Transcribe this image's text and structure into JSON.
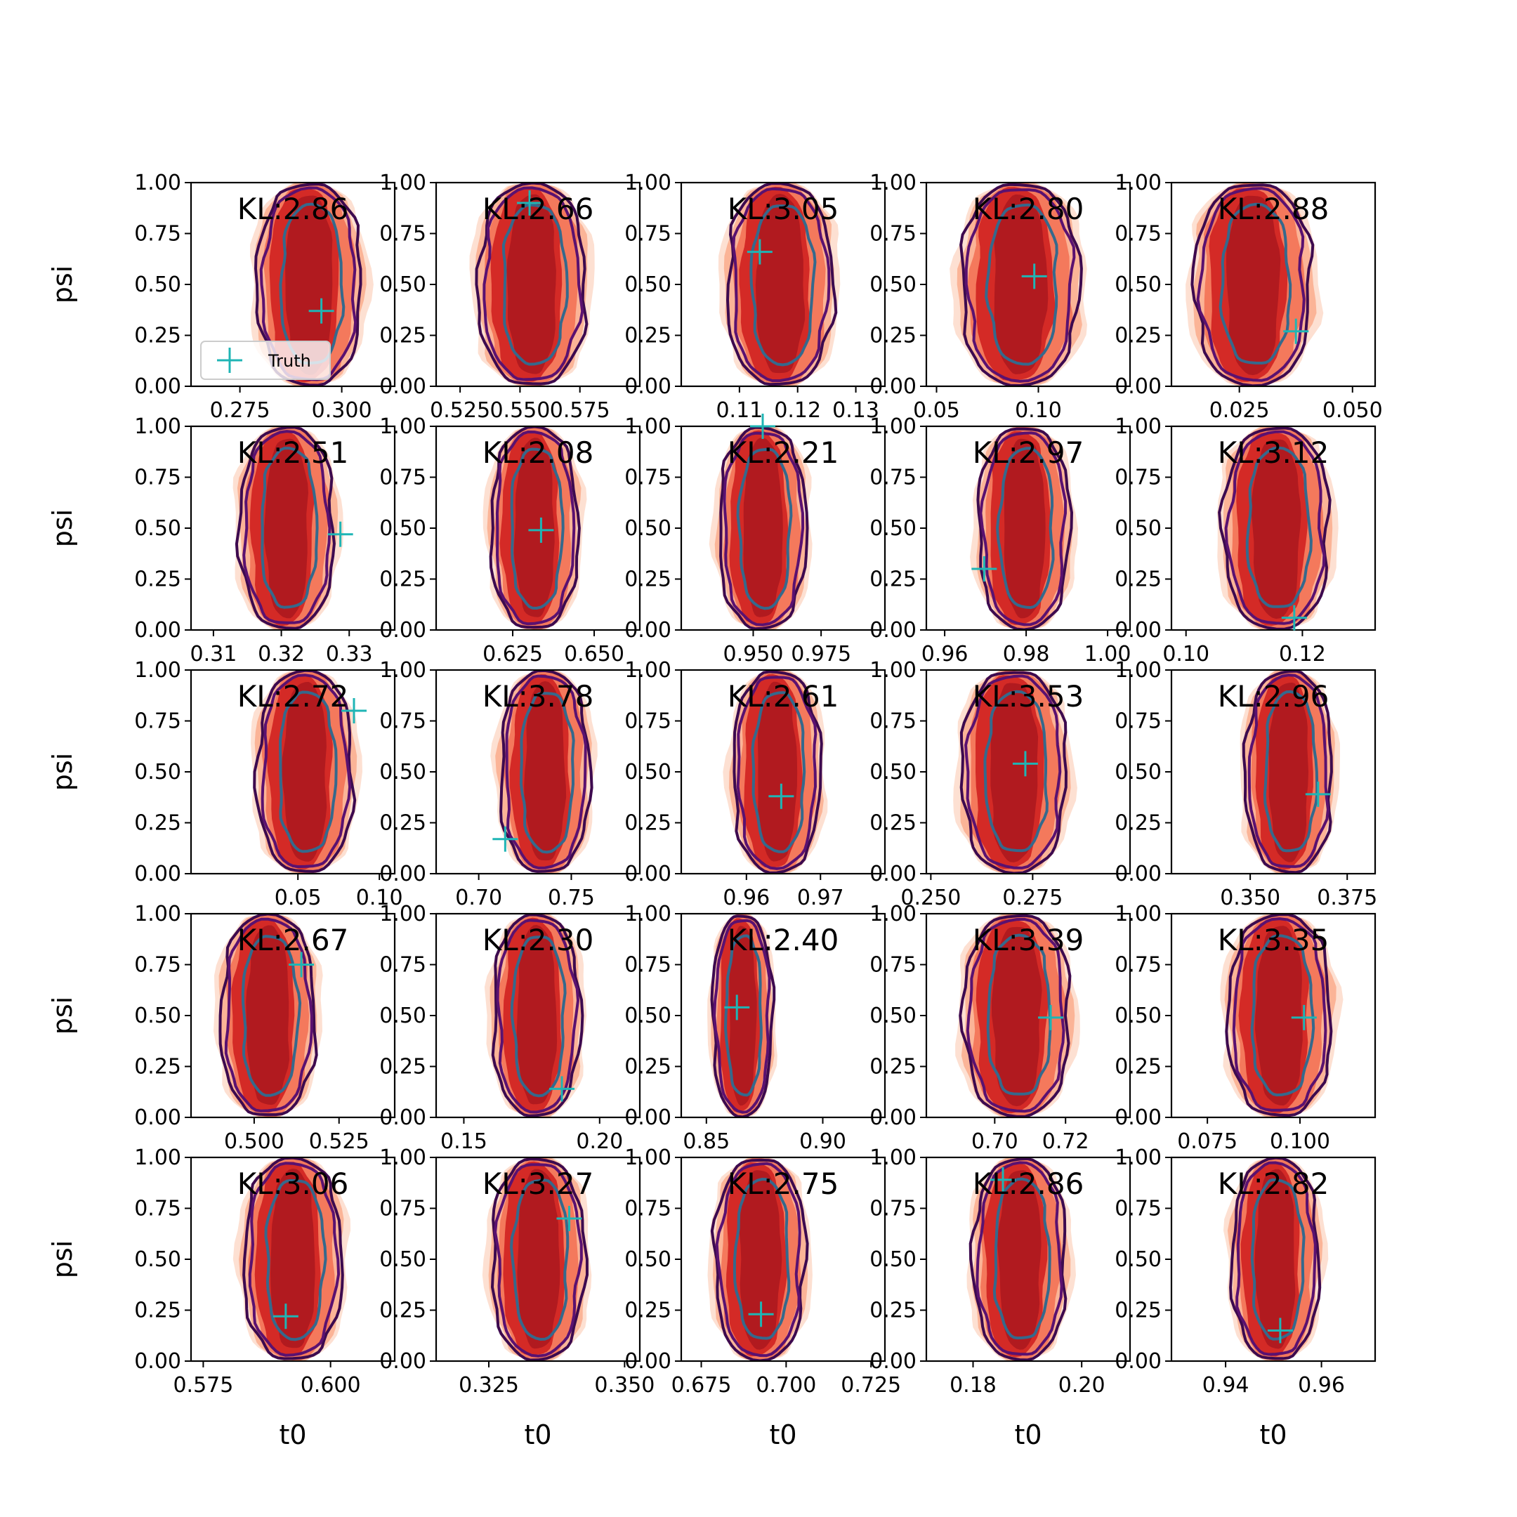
{
  "colors": {
    "fill_outer": "#fde0d2",
    "fill_mid": "#fbb497",
    "fill_light": "#fcbfa5",
    "fill_orange": "#f4795c",
    "fill_core": "#d42a26",
    "fill_deep": "#b11a1f",
    "contour_dark": "#3d0a4f",
    "contour_mid": "#5a1170",
    "contour_inner": "#35698c",
    "truth_marker": "#1fb5b5"
  },
  "legend": {
    "label": "Truth",
    "marker": "plus",
    "location": "lower left of first panel"
  },
  "chart_data": [
    {
      "type": "contour",
      "panel": 1,
      "annotation": "KL:2.86",
      "xlabel": "",
      "ylabel": "psi",
      "xlim": [
        0.263,
        0.313
      ],
      "ylim": [
        0,
        1
      ],
      "xticks": [
        "0.275",
        "0.300"
      ],
      "xtick_values": [
        0.275,
        0.3
      ],
      "yticks": [
        "0.00",
        "0.25",
        "0.50",
        "0.75",
        "1.00"
      ],
      "center_x": 0.292,
      "width": 0.024,
      "truth": {
        "x": 0.295,
        "y": 0.37
      }
    },
    {
      "type": "contour",
      "panel": 2,
      "annotation": "KL:2.66",
      "xlabel": "",
      "ylabel": "",
      "xlim": [
        0.515,
        0.6
      ],
      "ylim": [
        0,
        1
      ],
      "xticks": [
        "0.525",
        "0.550",
        "0.575"
      ],
      "xtick_values": [
        0.525,
        0.55,
        0.575
      ],
      "yticks": [
        "0.00",
        "0.25",
        "0.50",
        "0.75",
        "1.00"
      ],
      "center_x": 0.555,
      "width": 0.042,
      "truth": {
        "x": 0.554,
        "y": 0.9
      }
    },
    {
      "type": "contour",
      "panel": 3,
      "annotation": "KL:3.05",
      "xlabel": "",
      "ylabel": "",
      "xlim": [
        0.1,
        0.135
      ],
      "ylim": [
        0,
        1
      ],
      "xticks": [
        "0.11",
        "0.12",
        "0.13"
      ],
      "xtick_values": [
        0.11,
        0.12,
        0.13
      ],
      "yticks": [
        "0.00",
        "0.25",
        "0.50",
        "0.75",
        "1.00"
      ],
      "center_x": 0.117,
      "width": 0.017,
      "truth": {
        "x": 0.1135,
        "y": 0.66
      }
    },
    {
      "type": "contour",
      "panel": 4,
      "annotation": "KL:2.80",
      "xlabel": "",
      "ylabel": "",
      "xlim": [
        0.045,
        0.145
      ],
      "ylim": [
        0,
        1
      ],
      "xticks": [
        "0.05",
        "0.10"
      ],
      "xtick_values": [
        0.05,
        0.1
      ],
      "yticks": [
        "0.00",
        "0.25",
        "0.50",
        "0.75",
        "1.00"
      ],
      "center_x": 0.091,
      "width": 0.054,
      "truth": {
        "x": 0.098,
        "y": 0.54
      }
    },
    {
      "type": "contour",
      "panel": 5,
      "annotation": "KL:2.88",
      "xlabel": "",
      "ylabel": "",
      "xlim": [
        0.01,
        0.055
      ],
      "ylim": [
        0,
        1
      ],
      "xticks": [
        "0.025",
        "0.050"
      ],
      "xtick_values": [
        0.025,
        0.05
      ],
      "yticks": [
        "0.00",
        "0.25",
        "0.50",
        "0.75",
        "1.00"
      ],
      "center_x": 0.028,
      "width": 0.024,
      "truth": {
        "x": 0.0375,
        "y": 0.27
      }
    },
    {
      "type": "contour",
      "panel": 6,
      "annotation": "KL:2.51",
      "xlabel": "",
      "ylabel": "psi",
      "xlim": [
        0.3067,
        0.3367
      ],
      "ylim": [
        0,
        1
      ],
      "xticks": [
        "0.31",
        "0.32",
        "0.33"
      ],
      "xtick_values": [
        0.31,
        0.32,
        0.33
      ],
      "yticks": [
        "0.00",
        "0.25",
        "0.50",
        "0.75",
        "1.00"
      ],
      "center_x": 0.3208,
      "width": 0.013,
      "truth": {
        "x": 0.3287,
        "y": 0.47
      }
    },
    {
      "type": "contour",
      "panel": 7,
      "annotation": "KL:2.08",
      "xlabel": "",
      "ylabel": "",
      "xlim": [
        0.6015,
        0.664
      ],
      "ylim": [
        0,
        1
      ],
      "xticks": [
        "0.625",
        "0.650"
      ],
      "xtick_values": [
        0.625,
        0.65
      ],
      "yticks": [
        "0.00",
        "0.25",
        "0.50",
        "0.75",
        "1.00"
      ],
      "center_x": 0.6317,
      "width": 0.025,
      "truth": {
        "x": 0.6337,
        "y": 0.49
      }
    },
    {
      "type": "contour",
      "panel": 8,
      "annotation": "KL:2.21",
      "xlabel": "",
      "ylabel": "",
      "xlim": [
        0.9235,
        0.9985
      ],
      "ylim": [
        0,
        1
      ],
      "xticks": [
        "0.950",
        "0.975"
      ],
      "xtick_values": [
        0.95,
        0.975
      ],
      "yticks": [
        "0.00",
        "0.25",
        "0.50",
        "0.75",
        "1.00"
      ],
      "center_x": 0.9535,
      "width": 0.03,
      "truth": {
        "x": 0.9535,
        "y": 1.0
      }
    },
    {
      "type": "contour",
      "panel": 9,
      "annotation": "KL:2.97",
      "xlabel": "",
      "ylabel": "",
      "xlim": [
        0.9555,
        1.0055
      ],
      "ylim": [
        0,
        1
      ],
      "xticks": [
        "0.96",
        "0.98",
        "1.00"
      ],
      "xtick_values": [
        0.96,
        0.98,
        1.0
      ],
      "yticks": [
        "0.00",
        "0.25",
        "0.50",
        "0.75",
        "1.00"
      ],
      "center_x": 0.9795,
      "width": 0.021,
      "truth": {
        "x": 0.9697,
        "y": 0.3
      }
    },
    {
      "type": "contour",
      "panel": 10,
      "annotation": "KL:3.12",
      "xlabel": "",
      "ylabel": "",
      "xlim": [
        0.0975,
        0.1325
      ],
      "ylim": [
        0,
        1
      ],
      "xticks": [
        "0.10",
        "0.12"
      ],
      "xtick_values": [
        0.1,
        0.12
      ],
      "yticks": [
        "0.00",
        "0.25",
        "0.50",
        "0.75",
        "1.00"
      ],
      "center_x": 0.1155,
      "width": 0.017,
      "truth": {
        "x": 0.1186,
        "y": 0.06
      }
    },
    {
      "type": "contour",
      "panel": 11,
      "annotation": "KL:2.72",
      "xlabel": "",
      "ylabel": "psi",
      "xlim": [
        -0.0156,
        0.1094
      ],
      "ylim": [
        0,
        1
      ],
      "xticks": [
        "0.05",
        "0.10"
      ],
      "xtick_values": [
        0.05,
        0.1
      ],
      "yticks": [
        "0.00",
        "0.25",
        "0.50",
        "0.75",
        "1.00"
      ],
      "center_x": 0.0544,
      "width": 0.055,
      "truth": {
        "x": 0.0844,
        "y": 0.8
      }
    },
    {
      "type": "contour",
      "panel": 12,
      "annotation": "KL:3.78",
      "xlabel": "",
      "ylabel": "",
      "xlim": [
        0.677,
        0.787
      ],
      "ylim": [
        0,
        1
      ],
      "xticks": [
        "0.70",
        "0.75"
      ],
      "xtick_values": [
        0.7,
        0.75
      ],
      "yticks": [
        "0.00",
        "0.25",
        "0.50",
        "0.75",
        "1.00"
      ],
      "center_x": 0.7358,
      "width": 0.045,
      "truth": {
        "x": 0.7143,
        "y": 0.17
      }
    },
    {
      "type": "contour",
      "panel": 13,
      "annotation": "KL:2.61",
      "xlabel": "",
      "ylabel": "",
      "xlim": [
        0.9512,
        0.9787
      ],
      "ylim": [
        0,
        1
      ],
      "xticks": [
        "0.96",
        "0.97"
      ],
      "xtick_values": [
        0.96,
        0.97
      ],
      "yticks": [
        "0.00",
        "0.25",
        "0.50",
        "0.75",
        "1.00"
      ],
      "center_x": 0.9641,
      "width": 0.011,
      "truth": {
        "x": 0.9647,
        "y": 0.38
      }
    },
    {
      "type": "contour",
      "panel": 14,
      "annotation": "KL:3.53",
      "xlabel": "",
      "ylabel": "",
      "xlim": [
        0.2489,
        0.2989
      ],
      "ylim": [
        0,
        1
      ],
      "xticks": [
        "0.250",
        "0.275"
      ],
      "xtick_values": [
        0.25,
        0.275
      ],
      "yticks": [
        "0.00",
        "0.25",
        "0.50",
        "0.75",
        "1.00"
      ],
      "center_x": 0.2704,
      "width": 0.024,
      "truth": {
        "x": 0.2732,
        "y": 0.54
      }
    },
    {
      "type": "contour",
      "panel": 15,
      "annotation": "KL:2.96",
      "xlabel": "",
      "ylabel": "",
      "xlim": [
        0.3297,
        0.3822
      ],
      "ylim": [
        0,
        1
      ],
      "xticks": [
        "0.350",
        "0.375"
      ],
      "xtick_values": [
        0.35,
        0.375
      ],
      "yticks": [
        "0.00",
        "0.25",
        "0.50",
        "0.75",
        "1.00"
      ],
      "center_x": 0.3599,
      "width": 0.021,
      "truth": {
        "x": 0.3675,
        "y": 0.39
      }
    },
    {
      "type": "contour",
      "panel": 16,
      "annotation": "KL:2.67",
      "xlabel": "",
      "ylabel": "psi",
      "xlim": [
        0.4814,
        0.5414
      ],
      "ylim": [
        0,
        1
      ],
      "xticks": [
        "0.500",
        "0.525"
      ],
      "xtick_values": [
        0.5,
        0.525
      ],
      "yticks": [
        "0.00",
        "0.25",
        "0.50",
        "0.75",
        "1.00"
      ],
      "center_x": 0.5041,
      "width": 0.026,
      "truth": {
        "x": 0.5139,
        "y": 0.75
      }
    },
    {
      "type": "contour",
      "panel": 17,
      "annotation": "KL:2.30",
      "xlabel": "",
      "ylabel": "",
      "xlim": [
        0.1398,
        0.2148
      ],
      "ylim": [
        0,
        1
      ],
      "xticks": [
        "0.15",
        "0.20"
      ],
      "xtick_values": [
        0.15,
        0.2
      ],
      "yticks": [
        "0.00",
        "0.25",
        "0.50",
        "0.75",
        "1.00"
      ],
      "center_x": 0.1768,
      "width": 0.03,
      "truth": {
        "x": 0.1861,
        "y": 0.14
      }
    },
    {
      "type": "contour",
      "panel": 18,
      "annotation": "KL:2.40",
      "xlabel": "",
      "ylabel": "",
      "xlim": [
        0.8392,
        0.9267
      ],
      "ylim": [
        0,
        1
      ],
      "xticks": [
        "0.85",
        "0.90"
      ],
      "xtick_values": [
        0.85,
        0.9
      ],
      "yticks": [
        "0.00",
        "0.25",
        "0.50",
        "0.75",
        "1.00"
      ],
      "center_x": 0.8655,
      "width": 0.024,
      "truth": {
        "x": 0.8631,
        "y": 0.54
      }
    },
    {
      "type": "contour",
      "panel": 19,
      "annotation": "KL:3.39",
      "xlabel": "",
      "ylabel": "",
      "xlim": [
        0.6807,
        0.7382
      ],
      "ylim": [
        0,
        1
      ],
      "xticks": [
        "0.70",
        "0.72"
      ],
      "xtick_values": [
        0.7,
        0.72
      ],
      "yticks": [
        "0.00",
        "0.25",
        "0.50",
        "0.75",
        "1.00"
      ],
      "center_x": 0.7062,
      "width": 0.028,
      "truth": {
        "x": 0.7158,
        "y": 0.49
      }
    },
    {
      "type": "contour",
      "panel": 20,
      "annotation": "KL:3.35",
      "xlabel": "",
      "ylabel": "",
      "xlim": [
        0.0653,
        0.1203
      ],
      "ylim": [
        0,
        1
      ],
      "xticks": [
        "0.075",
        "0.100"
      ],
      "xtick_values": [
        0.075,
        0.1
      ],
      "yticks": [
        "0.00",
        "0.25",
        "0.50",
        "0.75",
        "1.00"
      ],
      "center_x": 0.0945,
      "width": 0.026,
      "truth": {
        "x": 0.1011,
        "y": 0.49
      }
    },
    {
      "type": "contour",
      "panel": 21,
      "annotation": "KL:3.06",
      "xlabel": "t0",
      "ylabel": "psi",
      "xlim": [
        0.5726,
        0.6126
      ],
      "ylim": [
        0,
        1
      ],
      "xticks": [
        "0.575",
        "0.600"
      ],
      "xtick_values": [
        0.575,
        0.6
      ],
      "yticks": [
        "0.00",
        "0.25",
        "0.50",
        "0.75",
        "1.00"
      ],
      "center_x": 0.5926,
      "width": 0.018,
      "truth": {
        "x": 0.5912,
        "y": 0.22
      }
    },
    {
      "type": "contour",
      "panel": 22,
      "annotation": "KL:3.27",
      "xlabel": "t0",
      "ylabel": "",
      "xlim": [
        0.3153,
        0.3528
      ],
      "ylim": [
        0,
        1
      ],
      "xticks": [
        "0.325",
        "0.350"
      ],
      "xtick_values": [
        0.325,
        0.35
      ],
      "yticks": [
        "0.00",
        "0.25",
        "0.50",
        "0.75",
        "1.00"
      ],
      "center_x": 0.3341,
      "width": 0.016,
      "truth": {
        "x": 0.3398,
        "y": 0.7
      }
    },
    {
      "type": "contour",
      "panel": 23,
      "annotation": "KL:2.75",
      "xlabel": "t0",
      "ylabel": "",
      "xlim": [
        0.6691,
        0.7291
      ],
      "ylim": [
        0,
        1
      ],
      "xticks": [
        "0.675",
        "0.700",
        "0.725"
      ],
      "xtick_values": [
        0.675,
        0.7,
        0.725
      ],
      "yticks": [
        "0.00",
        "0.25",
        "0.50",
        "0.75",
        "1.00"
      ],
      "center_x": 0.6923,
      "width": 0.025,
      "truth": {
        "x": 0.6926,
        "y": 0.23
      }
    },
    {
      "type": "contour",
      "panel": 24,
      "annotation": "KL:2.86",
      "xlabel": "t0",
      "ylabel": "",
      "xlim": [
        0.1714,
        0.2089
      ],
      "ylim": [
        0,
        1
      ],
      "xticks": [
        "0.18",
        "0.20"
      ],
      "xtick_values": [
        0.18,
        0.2
      ],
      "yticks": [
        "0.00",
        "0.25",
        "0.50",
        "0.75",
        "1.00"
      ],
      "center_x": 0.1886,
      "width": 0.016,
      "truth": {
        "x": 0.1855,
        "y": 0.89
      }
    },
    {
      "type": "contour",
      "panel": 25,
      "annotation": "KL:2.82",
      "xlabel": "t0",
      "ylabel": "",
      "xlim": [
        0.9287,
        0.9712
      ],
      "ylim": [
        0,
        1
      ],
      "xticks": [
        "0.94",
        "0.96"
      ],
      "xtick_values": [
        0.94,
        0.96
      ],
      "yticks": [
        "0.00",
        "0.25",
        "0.50",
        "0.75",
        "1.00"
      ],
      "center_x": 0.9504,
      "width": 0.017,
      "truth": {
        "x": 0.9514,
        "y": 0.15
      }
    }
  ]
}
